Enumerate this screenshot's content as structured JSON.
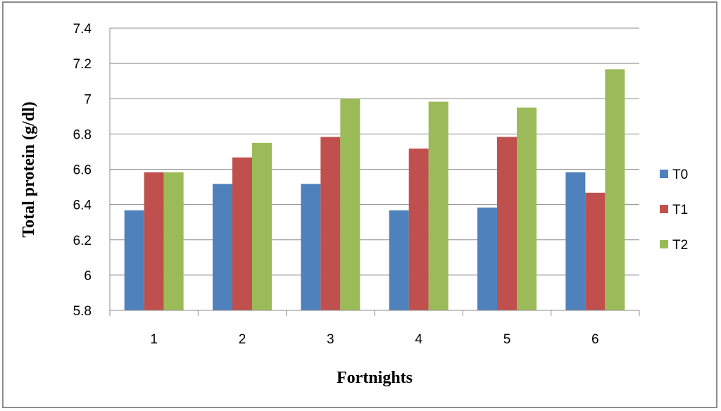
{
  "chart_data": {
    "type": "bar",
    "categories": [
      "1",
      "2",
      "3",
      "4",
      "5",
      "6"
    ],
    "series": [
      {
        "name": "T0",
        "values": [
          6.367,
          6.517,
          6.517,
          6.367,
          6.383,
          6.583
        ],
        "color": "#4f81bd"
      },
      {
        "name": "T1",
        "values": [
          6.583,
          6.667,
          6.783,
          6.717,
          6.783,
          6.467
        ],
        "color": "#c0504d"
      },
      {
        "name": "T2",
        "values": [
          6.583,
          6.75,
          7.0,
          6.983,
          6.95,
          7.167
        ],
        "color": "#9bbb59"
      }
    ],
    "title": "",
    "xlabel": "Fortnights",
    "ylabel": "Total protein (g/dl)",
    "ylim": [
      5.8,
      7.4
    ],
    "yticks": [
      "5.8",
      "6",
      "6.2",
      "6.4",
      "6.6",
      "6.8",
      "7",
      "7.2",
      "7.4"
    ],
    "grid": true,
    "legend_position": "right"
  }
}
